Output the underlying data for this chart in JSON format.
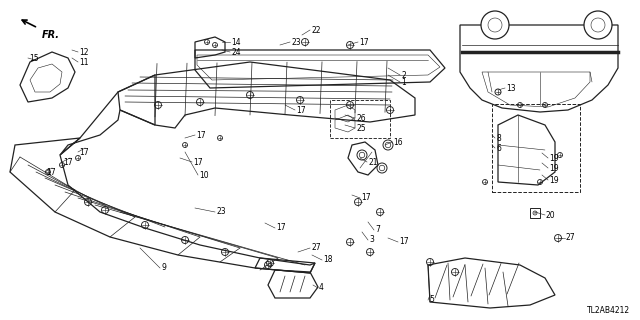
{
  "bg_color": "#ffffff",
  "diagram_code": "TL2AB4212",
  "line_color": "#222222",
  "lw_main": 0.9,
  "lw_rib": 0.5,
  "lw_thin": 0.4
}
